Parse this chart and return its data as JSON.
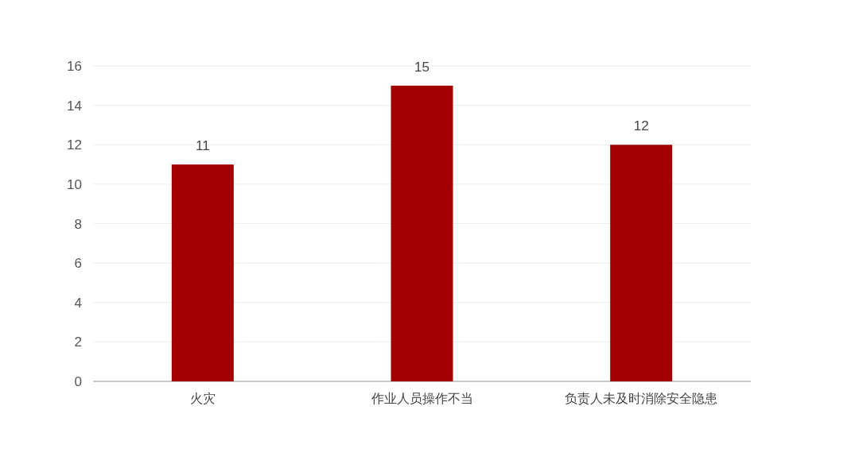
{
  "chart_data": {
    "type": "bar",
    "categories": [
      "火灾",
      "作业人员操作不当",
      "负责人未及时消除安全隐患"
    ],
    "values": [
      11,
      15,
      12
    ],
    "color": "#a00000",
    "ylim": [
      0,
      16
    ],
    "yticks": [
      0,
      2,
      4,
      6,
      8,
      10,
      12,
      14,
      16
    ],
    "grid": "y",
    "data_labels": true
  }
}
